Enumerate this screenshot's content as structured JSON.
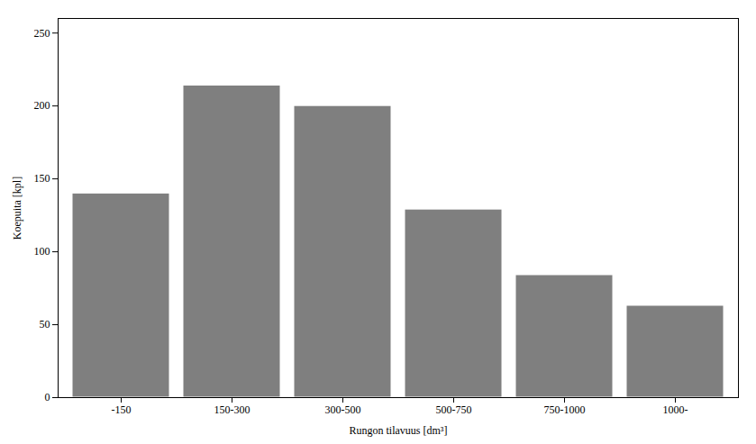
{
  "chart_data": {
    "type": "bar",
    "categories": [
      "-150",
      "150-300",
      "300-500",
      "500-750",
      "750-1000",
      "1000-"
    ],
    "values": [
      140,
      214,
      200,
      129,
      84,
      63
    ],
    "color": "#7f7f7f",
    "xlabel": "Rungon tilavuus [dm³]",
    "ylabel": "Koepuita [kpl]",
    "ylim": [
      0,
      260
    ],
    "yticks": [
      0,
      50,
      100,
      150,
      200,
      250
    ],
    "grid": false
  }
}
